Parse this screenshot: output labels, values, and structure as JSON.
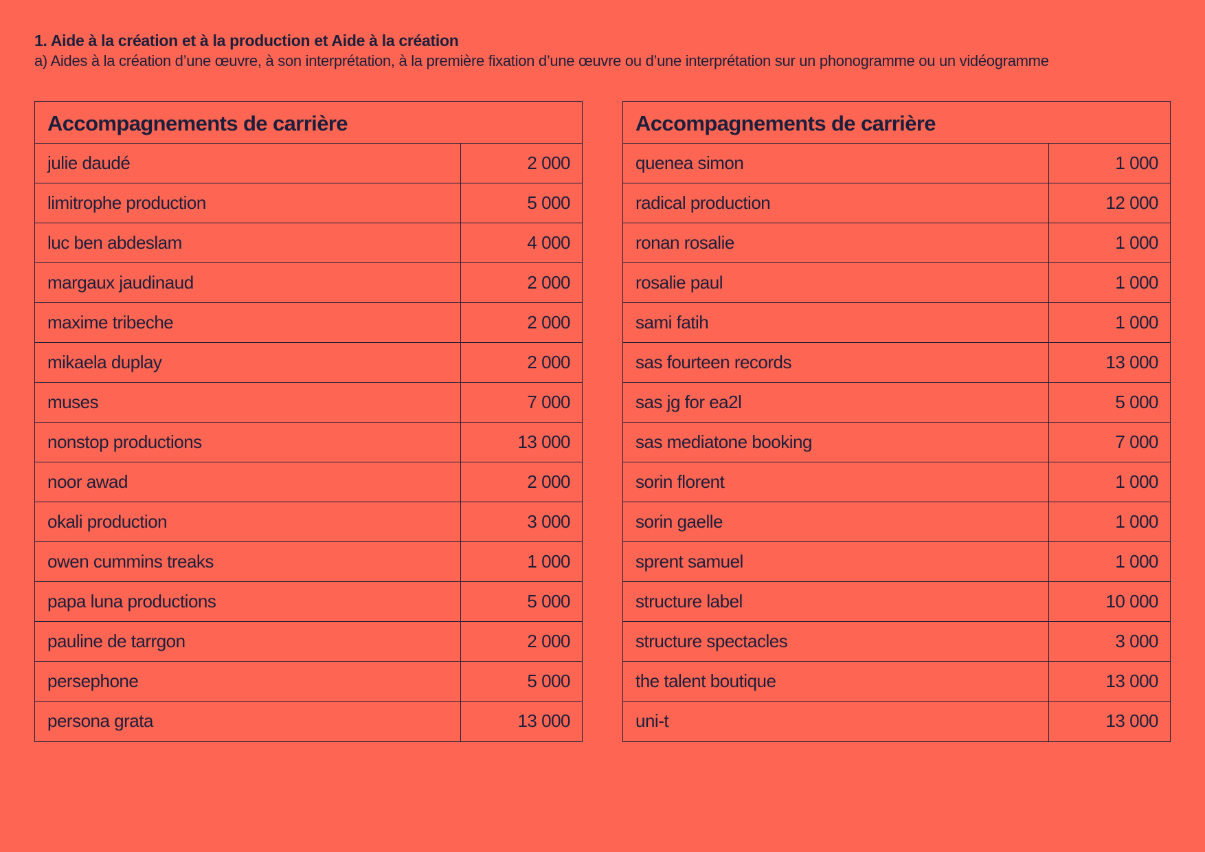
{
  "header": {
    "title": "1. Aide à la création et à la production et Aide à la création",
    "subtitle": "a) Aides à la création d’une œuvre, à son interprétation, à la première fixation d’une œuvre ou d’une interprétation sur un phonogramme ou un vidéogramme"
  },
  "tables": [
    {
      "heading": "Accompagnements de carrière",
      "rows": [
        {
          "name": "julie daudé",
          "amount": "2 000"
        },
        {
          "name": "limitrophe production",
          "amount": "5 000"
        },
        {
          "name": "luc ben abdeslam",
          "amount": "4 000"
        },
        {
          "name": "margaux jaudinaud",
          "amount": "2 000"
        },
        {
          "name": "maxime tribeche",
          "amount": "2 000"
        },
        {
          "name": "mikaela duplay",
          "amount": "2 000"
        },
        {
          "name": "muses",
          "amount": "7 000"
        },
        {
          "name": "nonstop productions",
          "amount": "13 000"
        },
        {
          "name": "noor awad",
          "amount": "2 000"
        },
        {
          "name": "okali production",
          "amount": "3 000"
        },
        {
          "name": "owen cummins treaks",
          "amount": "1 000"
        },
        {
          "name": "papa luna productions",
          "amount": "5 000"
        },
        {
          "name": "pauline de tarrgon",
          "amount": "2 000"
        },
        {
          "name": "persephone",
          "amount": "5 000"
        },
        {
          "name": "persona grata",
          "amount": "13 000"
        }
      ]
    },
    {
      "heading": "Accompagnements de carrière",
      "rows": [
        {
          "name": "quenea simon",
          "amount": "1 000"
        },
        {
          "name": "radical production",
          "amount": "12 000"
        },
        {
          "name": "ronan rosalie",
          "amount": "1 000"
        },
        {
          "name": "rosalie paul",
          "amount": "1 000"
        },
        {
          "name": "sami fatih",
          "amount": "1 000"
        },
        {
          "name": "sas fourteen records",
          "amount": "13 000"
        },
        {
          "name": "sas jg for ea2l",
          "amount": "5 000"
        },
        {
          "name": "sas mediatone booking",
          "amount": "7 000"
        },
        {
          "name": "sorin florent",
          "amount": "1 000"
        },
        {
          "name": "sorin gaelle",
          "amount": "1 000"
        },
        {
          "name": "sprent samuel",
          "amount": "1 000"
        },
        {
          "name": "structure label",
          "amount": "10 000"
        },
        {
          "name": "structure spectacles",
          "amount": "3 000"
        },
        {
          "name": "the talent boutique",
          "amount": "13 000"
        },
        {
          "name": "uni-t",
          "amount": "13 000"
        }
      ]
    }
  ]
}
